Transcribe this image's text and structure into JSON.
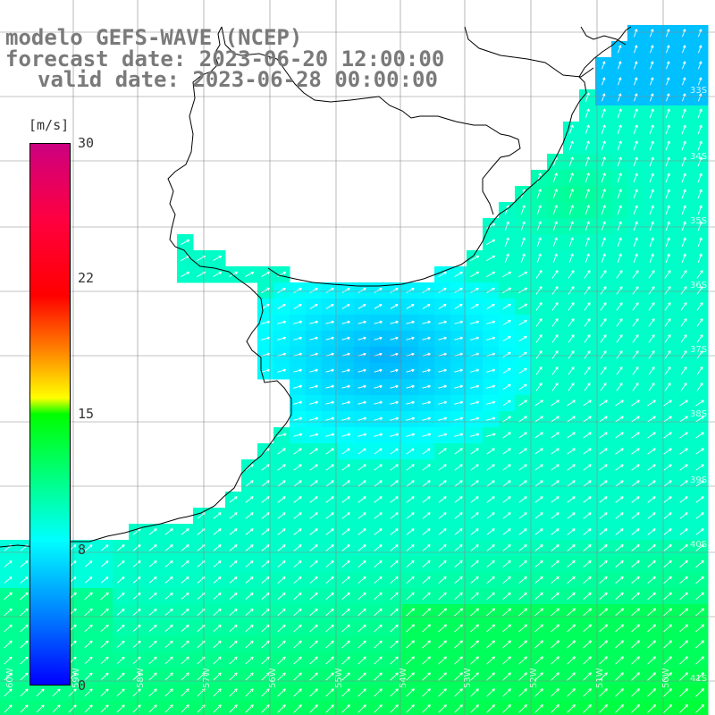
{
  "title": {
    "line1": "modelo GEFS-WAVE (NCEP)",
    "line2": "forecast date: 2023-06-20 12:00:00",
    "line3": "valid date: 2023-06-28 00:00:00"
  },
  "colorbar": {
    "unit": "[m/s]",
    "min": 0,
    "max": 30,
    "ticks": [
      "30",
      "22",
      "15",
      "8",
      "0"
    ],
    "colors": [
      "#0000ff",
      "#0080ff",
      "#00ffff",
      "#00ff00",
      "#ffff00",
      "#ff8000",
      "#ff0000",
      "#cc0080"
    ]
  },
  "map": {
    "land_color": "#ffffff",
    "coast_color": "#000000",
    "grid_color": "#888888",
    "arrow_color": "#ffffff",
    "lat_labels": [
      "33S",
      "34S",
      "35S",
      "36S",
      "37S",
      "38S",
      "39S",
      "40S",
      "41S"
    ],
    "lon_labels": [
      "60W",
      "59W",
      "58W",
      "57W",
      "56W",
      "55W",
      "54W",
      "53W",
      "52W",
      "51W",
      "50W"
    ]
  }
}
